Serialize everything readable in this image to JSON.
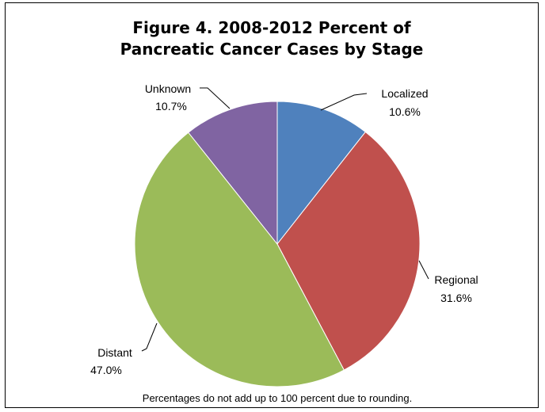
{
  "chart_data": {
    "type": "pie",
    "title_lines": [
      "Figure 4. 2008-2012 Percent of",
      "Pancreatic Cancer Cases by Stage"
    ],
    "slices": [
      {
        "label": "Localized",
        "value": 10.6,
        "value_text": "10.6%",
        "color": "#4F81BD"
      },
      {
        "label": "Regional",
        "value": 31.6,
        "value_text": "31.6%",
        "color": "#C0504D"
      },
      {
        "label": "Distant",
        "value": 47.0,
        "value_text": "47.0%",
        "color": "#9BBB59"
      },
      {
        "label": "Unknown",
        "value": 10.7,
        "value_text": "10.7%",
        "color": "#8064A2"
      }
    ],
    "footnote": "Percentages do not add up to 100 percent due to rounding.",
    "legend": "none"
  }
}
